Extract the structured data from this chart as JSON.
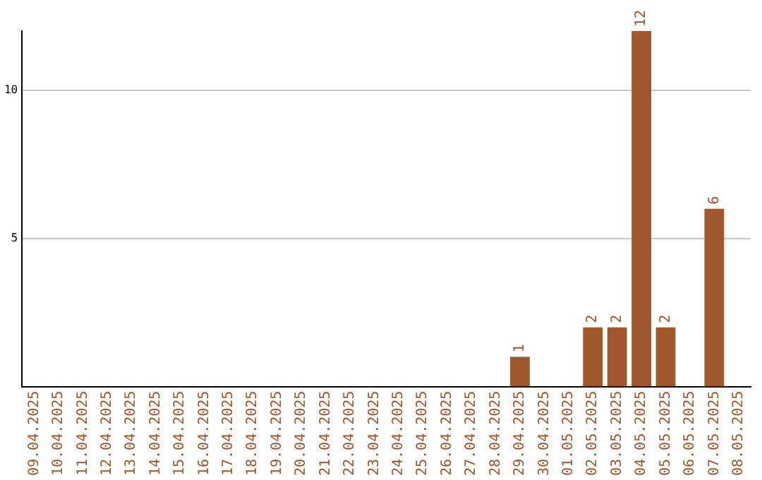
{
  "chart_data": {
    "type": "bar",
    "categories": [
      "09.04.2025",
      "10.04.2025",
      "11.04.2025",
      "12.04.2025",
      "13.04.2025",
      "14.04.2025",
      "15.04.2025",
      "16.04.2025",
      "17.04.2025",
      "18.04.2025",
      "19.04.2025",
      "20.04.2025",
      "21.04.2025",
      "22.04.2025",
      "23.04.2025",
      "24.04.2025",
      "25.04.2025",
      "26.04.2025",
      "27.04.2025",
      "28.04.2025",
      "29.04.2025",
      "30.04.2025",
      "01.05.2025",
      "02.05.2025",
      "03.05.2025",
      "04.05.2025",
      "05.05.2025",
      "06.05.2025",
      "07.05.2025",
      "08.05.2025"
    ],
    "values": [
      0,
      0,
      0,
      0,
      0,
      0,
      0,
      0,
      0,
      0,
      0,
      0,
      0,
      0,
      0,
      0,
      0,
      0,
      0,
      0,
      1,
      0,
      0,
      2,
      2,
      12,
      2,
      0,
      6,
      0
    ],
    "value_labels": [
      null,
      null,
      null,
      null,
      null,
      null,
      null,
      null,
      null,
      null,
      null,
      null,
      null,
      null,
      null,
      null,
      null,
      null,
      null,
      null,
      "1",
      null,
      null,
      "2",
      "2",
      "12",
      "2",
      null,
      "6",
      null
    ],
    "color": "#a0572b",
    "ylim": [
      0,
      12
    ],
    "yticks": [
      5,
      10
    ],
    "grid": "y",
    "legend": false
  }
}
